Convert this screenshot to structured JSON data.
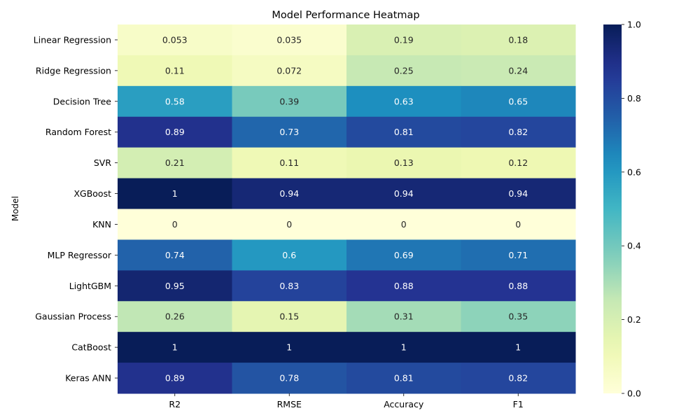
{
  "chart_data": {
    "type": "heatmap",
    "title": "Model Performance Heatmap",
    "xlabel": "",
    "ylabel": "Model",
    "columns": [
      "R2",
      "RMSE",
      "Accuracy",
      "F1"
    ],
    "rows": [
      "Linear Regression",
      "Ridge Regression",
      "Decision Tree",
      "Random Forest",
      "SVR",
      "XGBoost",
      "KNN",
      "MLP Regressor",
      "LightGBM",
      "Gaussian Process",
      "CatBoost",
      "Keras ANN"
    ],
    "values": [
      [
        0.053,
        0.035,
        0.19,
        0.18
      ],
      [
        0.11,
        0.072,
        0.25,
        0.24
      ],
      [
        0.58,
        0.39,
        0.63,
        0.65
      ],
      [
        0.89,
        0.73,
        0.81,
        0.82
      ],
      [
        0.21,
        0.11,
        0.13,
        0.12
      ],
      [
        1,
        0.94,
        0.94,
        0.94
      ],
      [
        0,
        0,
        0,
        0
      ],
      [
        0.74,
        0.6,
        0.69,
        0.71
      ],
      [
        0.95,
        0.83,
        0.88,
        0.88
      ],
      [
        0.26,
        0.15,
        0.31,
        0.35
      ],
      [
        1,
        1,
        1,
        1
      ],
      [
        0.89,
        0.78,
        0.81,
        0.82
      ]
    ],
    "labels": [
      [
        "0.053",
        "0.035",
        "0.19",
        "0.18"
      ],
      [
        "0.11",
        "0.072",
        "0.25",
        "0.24"
      ],
      [
        "0.58",
        "0.39",
        "0.63",
        "0.65"
      ],
      [
        "0.89",
        "0.73",
        "0.81",
        "0.82"
      ],
      [
        "0.21",
        "0.11",
        "0.13",
        "0.12"
      ],
      [
        "1",
        "0.94",
        "0.94",
        "0.94"
      ],
      [
        "0",
        "0",
        "0",
        "0"
      ],
      [
        "0.74",
        "0.6",
        "0.69",
        "0.71"
      ],
      [
        "0.95",
        "0.83",
        "0.88",
        "0.88"
      ],
      [
        "0.26",
        "0.15",
        "0.31",
        "0.35"
      ],
      [
        "1",
        "1",
        "1",
        "1"
      ],
      [
        "0.89",
        "0.78",
        "0.81",
        "0.82"
      ]
    ],
    "colormap": "YlGnBu",
    "vmin": 0,
    "vmax": 1,
    "colorbar_ticks": [
      "0.0",
      "0.2",
      "0.4",
      "0.6",
      "0.8",
      "1.0"
    ]
  }
}
